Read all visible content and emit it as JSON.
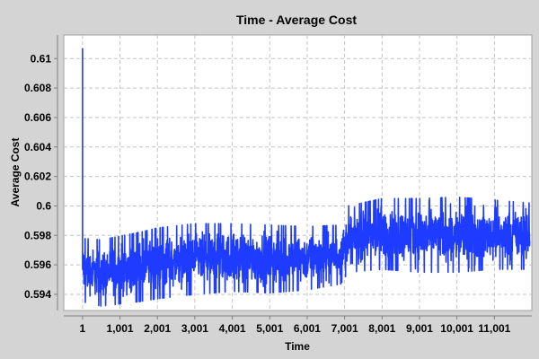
{
  "chart_data": {
    "type": "line",
    "title": "Time - Average Cost",
    "xlabel": "Time",
    "ylabel": "Average Cost",
    "xlim": [
      -500,
      12001
    ],
    "ylim": [
      0.5929,
      0.6116
    ],
    "x_ticks": [
      1,
      1001,
      2001,
      3001,
      4001,
      5001,
      6001,
      7001,
      8001,
      9001,
      10001,
      11001
    ],
    "x_tick_labels": [
      "1",
      "1,001",
      "2,001",
      "3,001",
      "4,001",
      "5,001",
      "6,001",
      "7,001",
      "8,001",
      "9,001",
      "10,001",
      "11,001"
    ],
    "y_ticks": [
      0.594,
      0.596,
      0.598,
      0.6,
      0.602,
      0.604,
      0.606,
      0.608,
      0.61
    ],
    "y_tick_labels": [
      "0.594",
      "0.596",
      "0.598",
      "0.6",
      "0.602",
      "0.604",
      "0.606",
      "0.608",
      "0.61"
    ],
    "grid": true,
    "colors": {
      "series": "#1e3cff",
      "plot_bg": "#ffffff",
      "page_bg": "#d4d4d4",
      "grid": "#c4c4c4"
    },
    "series": [
      {
        "x_start": 1,
        "x_end": 11951,
        "spike": {
          "x": 1,
          "y": 0.6107
        },
        "envelope": [
          {
            "x": 1,
            "low": 0.5935,
            "high": 0.5978
          },
          {
            "x": 500,
            "low": 0.5932,
            "high": 0.5977
          },
          {
            "x": 1500,
            "low": 0.5935,
            "high": 0.5982
          },
          {
            "x": 2001,
            "low": 0.5937,
            "high": 0.5985
          },
          {
            "x": 3001,
            "low": 0.594,
            "high": 0.5988
          },
          {
            "x": 4001,
            "low": 0.5942,
            "high": 0.5988
          },
          {
            "x": 5001,
            "low": 0.5941,
            "high": 0.5987
          },
          {
            "x": 6001,
            "low": 0.5943,
            "high": 0.5986
          },
          {
            "x": 6900,
            "low": 0.5947,
            "high": 0.5987
          },
          {
            "x": 7101,
            "low": 0.5955,
            "high": 0.6
          },
          {
            "x": 8001,
            "low": 0.5957,
            "high": 0.6005
          },
          {
            "x": 9001,
            "low": 0.5955,
            "high": 0.6005
          },
          {
            "x": 10001,
            "low": 0.5955,
            "high": 0.6006
          },
          {
            "x": 11001,
            "low": 0.5957,
            "high": 0.6004
          },
          {
            "x": 11951,
            "low": 0.5957,
            "high": 0.6002
          }
        ]
      }
    ]
  }
}
